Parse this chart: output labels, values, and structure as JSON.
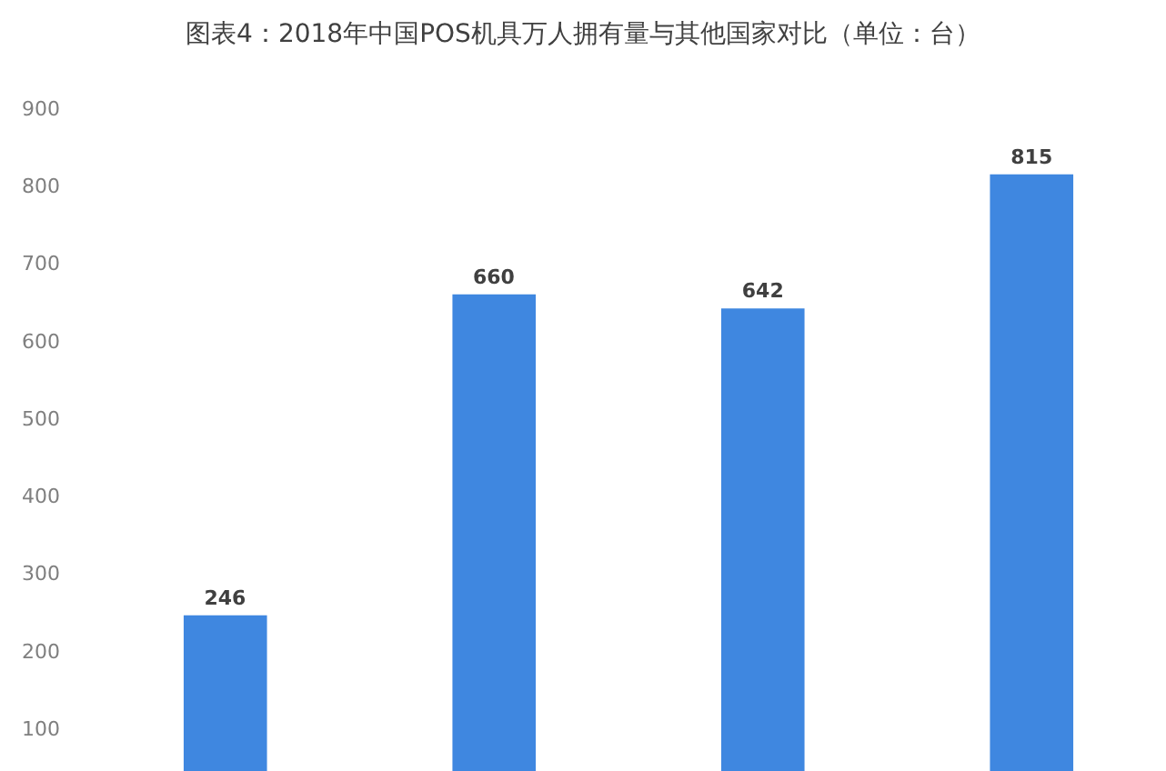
{
  "chart_data": {
    "type": "bar",
    "title": "图表4：2018年中国POS机具万人拥有量与其他国家对比（单位：台）",
    "categories": [
      null,
      null,
      null,
      null
    ],
    "values": [
      246,
      660,
      642,
      815
    ],
    "color": "#3f87e0",
    "ylim": [
      45,
      1040
    ],
    "yticks": [
      100,
      200,
      300,
      400,
      500,
      600,
      700,
      800,
      900
    ],
    "data_labels": true,
    "tick_labels": "y"
  }
}
